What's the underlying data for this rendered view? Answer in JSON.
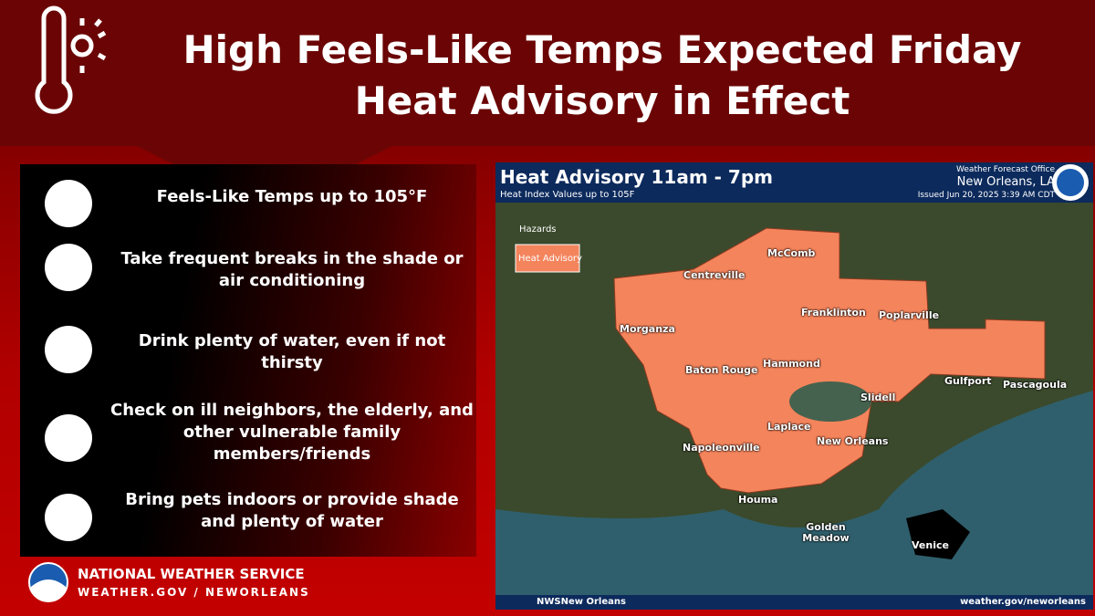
{
  "header": {
    "title_line1": "High Feels-Like Temps Expected Friday",
    "title_line2": "Heat Advisory in Effect"
  },
  "tips": [
    "Feels-Like Temps up to 105°F",
    "Take frequent breaks in the shade or air conditioning",
    "Drink plenty of water, even if not thirsty",
    "Check on ill neighbors, the elderly, and other vulnerable family members/friends",
    "Bring pets indoors or provide shade and plenty of water"
  ],
  "footer": {
    "agency": "NATIONAL WEATHER SERVICE",
    "url": "WEATHER.GOV / NEWORLEANS"
  },
  "map": {
    "title": "Heat Advisory 11am - 7pm",
    "subtitle": "Heat Index Values up to 105F",
    "office_line1": "Weather Forecast Office",
    "office_line2": "New Orleans, LA",
    "issued": "Issued Jun 20, 2025 3:39 AM CDT",
    "legend_title": "Hazards",
    "legend_item": "Heat Advisory",
    "cities": [
      "Centreville",
      "McComb",
      "Morganza",
      "Franklinton",
      "Poplarville",
      "Baton Rouge",
      "Hammond",
      "Slidell",
      "Gulfport",
      "Pascagoula",
      "Laplace",
      "New Orleans",
      "Napoleonville",
      "Houma",
      "Golden Meadow",
      "Venice"
    ],
    "social": "NWSNew Orleans",
    "url": "weather.gov/neworleans"
  }
}
